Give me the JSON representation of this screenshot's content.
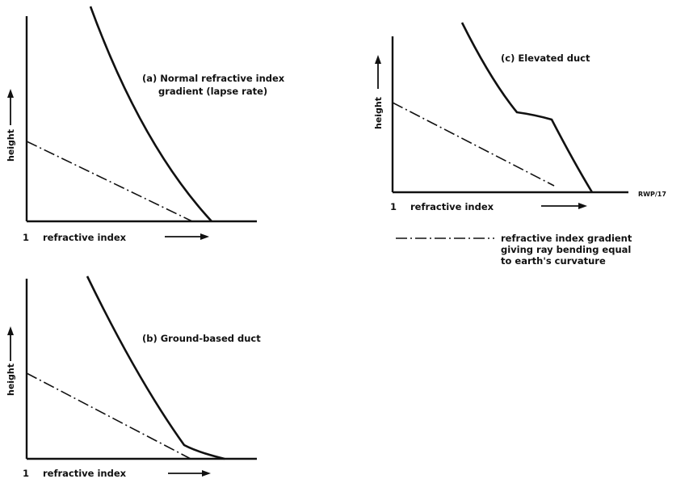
{
  "panels": {
    "a": {
      "caption_line1": "(a) Normal refractive index",
      "caption_line2": "gradient (lapse rate)",
      "ylabel": "height",
      "xlabel_one": "1",
      "xlabel": "refractive index"
    },
    "b": {
      "caption": "(b) Ground-based duct",
      "ylabel": "height",
      "xlabel_one": "1",
      "xlabel": "refractive index"
    },
    "c": {
      "caption": "(c) Elevated duct",
      "ylabel": "height",
      "xlabel_one": "1",
      "xlabel": "refractive index",
      "figure_code": "RWP/17"
    }
  },
  "legend": {
    "line1": "refractive index gradient",
    "line2": "giving ray bending equal",
    "line3": "to earth's curvature"
  }
}
